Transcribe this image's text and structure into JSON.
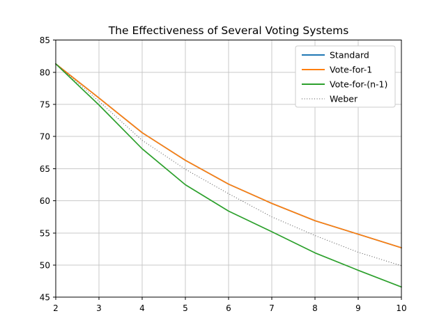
{
  "chart_data": {
    "type": "line",
    "title": "The Effectiveness of Several Voting Systems",
    "xlabel": "",
    "ylabel": "",
    "x": [
      2,
      3,
      4,
      5,
      6,
      7,
      8,
      9,
      10
    ],
    "xlim": [
      2,
      10
    ],
    "ylim": [
      45,
      85
    ],
    "xticks": [
      "2",
      "3",
      "4",
      "5",
      "6",
      "7",
      "8",
      "9",
      "10"
    ],
    "yticks": [
      "45",
      "50",
      "55",
      "60",
      "65",
      "70",
      "75",
      "80",
      "85"
    ],
    "grid": true,
    "legend_position": "upper right",
    "series": [
      {
        "name": "Standard",
        "color": "#1f77b4",
        "style": "solid",
        "values": [
          81.3,
          76.0,
          70.6,
          66.3,
          62.6,
          59.6,
          56.9,
          54.8,
          52.7
        ]
      },
      {
        "name": "Vote-for-1",
        "color": "#ff7f0e",
        "style": "solid",
        "values": [
          81.3,
          76.0,
          70.6,
          66.3,
          62.6,
          59.6,
          56.9,
          54.8,
          52.7
        ]
      },
      {
        "name": "Vote-for-(n-1)",
        "color": "#2ca02c",
        "style": "solid",
        "values": [
          81.3,
          74.9,
          68.1,
          62.5,
          58.4,
          55.2,
          51.9,
          49.2,
          46.6
        ]
      },
      {
        "name": "Weber",
        "color": "#4d4d4d",
        "style": "dotted",
        "values": [
          81.3,
          75.5,
          69.4,
          64.9,
          61.1,
          57.5,
          54.6,
          52.0,
          49.9
        ]
      }
    ],
    "colors": {
      "background": "#ffffff",
      "grid": "#c9c9c9",
      "spine": "#000000",
      "text": "#000000",
      "legend_border": "#cccccc",
      "legend_background": "#ffffff"
    }
  }
}
